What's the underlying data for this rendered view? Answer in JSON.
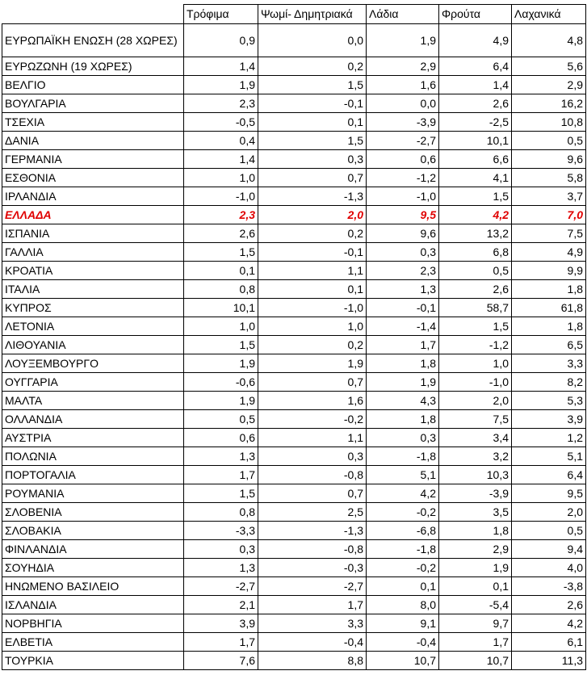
{
  "table": {
    "headers": [
      "",
      "Τρόφιμα",
      "Ψωμί- Δημητριακά",
      "Λάδια",
      "Φρούτα",
      "Λαχανικά"
    ],
    "rows": [
      {
        "country": "ΕΥΡΩΠΑΪΚΗ ΕΝΩΣΗ (28 ΧΩΡΕΣ)",
        "values": [
          "0,9",
          "0,0",
          "1,9",
          "4,9",
          "4,8"
        ]
      },
      {
        "country": "ΕΥΡΩΖΩΝΗ (19 ΧΩΡΕΣ)",
        "values": [
          "1,4",
          "0,2",
          "2,9",
          "6,4",
          "5,6"
        ]
      },
      {
        "country": "ΒΕΛΓΙΟ",
        "values": [
          "1,9",
          "1,5",
          "1,6",
          "1,4",
          "2,9"
        ]
      },
      {
        "country": "ΒΟΥΛΓΑΡΙΑ",
        "values": [
          "2,3",
          "-0,1",
          "0,0",
          "2,6",
          "16,2"
        ]
      },
      {
        "country": "ΤΣΕΧΙΑ",
        "values": [
          "-0,5",
          "0,1",
          "-3,9",
          "-2,5",
          "10,8"
        ]
      },
      {
        "country": "ΔΑΝΙΑ",
        "values": [
          "0,4",
          "1,5",
          "-2,7",
          "10,1",
          "0,5"
        ]
      },
      {
        "country": "ΓΕΡΜΑΝΙΑ",
        "values": [
          "1,4",
          "0,3",
          "0,6",
          "6,6",
          "9,6"
        ]
      },
      {
        "country": "ΕΣΘΟΝΙΑ",
        "values": [
          "1,0",
          "0,7",
          "-1,2",
          "4,1",
          "5,8"
        ]
      },
      {
        "country": "ΙΡΛΑΝΔΙΑ",
        "values": [
          "-1,0",
          "-1,3",
          "-1,0",
          "1,5",
          "3,7"
        ]
      },
      {
        "country": "ΕΛΛΑΔΑ",
        "values": [
          "2,3",
          "2,0",
          "9,5",
          "4,2",
          "7,0"
        ],
        "highlight": true
      },
      {
        "country": "ΙΣΠΑΝΙΑ",
        "values": [
          "2,6",
          "0,2",
          "9,6",
          "13,2",
          "7,5"
        ]
      },
      {
        "country": "ΓΑΛΛΙΑ",
        "values": [
          "1,5",
          "-0,1",
          "0,3",
          "6,8",
          "4,9"
        ]
      },
      {
        "country": "ΚΡΟΑΤΙΑ",
        "values": [
          "0,1",
          "1,1",
          "2,3",
          "0,5",
          "9,9"
        ]
      },
      {
        "country": "ΙΤΑΛΙΑ",
        "values": [
          "0,8",
          "0,1",
          "1,3",
          "2,6",
          "1,8"
        ]
      },
      {
        "country": "ΚΥΠΡΟΣ",
        "values": [
          "10,1",
          "-1,0",
          "-0,1",
          "58,7",
          "61,8"
        ]
      },
      {
        "country": "ΛΕΤΟΝΙΑ",
        "values": [
          "1,0",
          "1,0",
          "-1,4",
          "1,5",
          "1,8"
        ]
      },
      {
        "country": "ΛΙΘΟΥΑΝΙΑ",
        "values": [
          "1,5",
          "0,2",
          "1,7",
          "-1,2",
          "6,5"
        ]
      },
      {
        "country": "ΛΟΥΞΕΜΒΟΥΡΓΟ",
        "values": [
          "1,9",
          "1,9",
          "1,8",
          "1,0",
          "3,3"
        ]
      },
      {
        "country": "ΟΥΓΓΑΡΙΑ",
        "values": [
          "-0,6",
          "0,7",
          "1,9",
          "-1,0",
          "8,2"
        ]
      },
      {
        "country": "ΜΑΛΤΑ",
        "values": [
          "1,9",
          "1,6",
          "4,3",
          "2,0",
          "5,3"
        ]
      },
      {
        "country": "ΟΛΛΑΝΔΙΑ",
        "values": [
          "0,5",
          "-0,2",
          "1,8",
          "7,5",
          "3,9"
        ]
      },
      {
        "country": "ΑΥΣΤΡΙΑ",
        "values": [
          "0,6",
          "1,1",
          "0,3",
          "3,4",
          "1,2"
        ]
      },
      {
        "country": "ΠΟΛΩΝΙΑ",
        "values": [
          "1,3",
          "0,3",
          "-1,8",
          "3,2",
          "5,1"
        ]
      },
      {
        "country": "ΠΟΡΤΟΓΑΛΙΑ",
        "values": [
          "1,7",
          "-0,8",
          "5,1",
          "10,3",
          "6,4"
        ]
      },
      {
        "country": "ΡΟΥΜΑΝΙΑ",
        "values": [
          "1,5",
          "0,7",
          "4,2",
          "-3,9",
          "9,5"
        ]
      },
      {
        "country": "ΣΛΟΒΕΝΙΑ",
        "values": [
          "0,8",
          "2,5",
          "-0,2",
          "3,5",
          "2,0"
        ]
      },
      {
        "country": "ΣΛΟΒΑΚΙΑ",
        "values": [
          "-3,3",
          "-1,3",
          "-6,8",
          "1,8",
          "0,5"
        ]
      },
      {
        "country": "ΦΙΝΛΑΝΔΙΑ",
        "values": [
          "0,3",
          "-0,8",
          "-1,8",
          "2,9",
          "9,4"
        ]
      },
      {
        "country": "ΣΟΥΗΔΙΑ",
        "values": [
          "1,3",
          "-0,3",
          "-0,2",
          "1,9",
          "4,0"
        ]
      },
      {
        "country": "ΗΝΩΜΕΝΟ ΒΑΣΙΛΕΙΟ",
        "values": [
          "-2,7",
          "-2,7",
          "0,1",
          "0,1",
          "-3,8"
        ]
      },
      {
        "country": "ΙΣΛΑΝΔΙΑ",
        "values": [
          "2,1",
          "1,7",
          "8,0",
          "-5,4",
          "2,6"
        ]
      },
      {
        "country": "ΝΟΡΒΗΓΙΑ",
        "values": [
          "3,9",
          "3,3",
          "9,1",
          "9,7",
          "4,2"
        ]
      },
      {
        "country": "ΕΛΒΕΤΙΑ",
        "values": [
          "1,7",
          "-0,4",
          "-0,4",
          "1,7",
          "6,1"
        ]
      },
      {
        "country": "ΤΟΥΡΚΙΑ",
        "values": [
          "7,6",
          "8,8",
          "10,7",
          "10,7",
          "11,3"
        ]
      }
    ]
  }
}
